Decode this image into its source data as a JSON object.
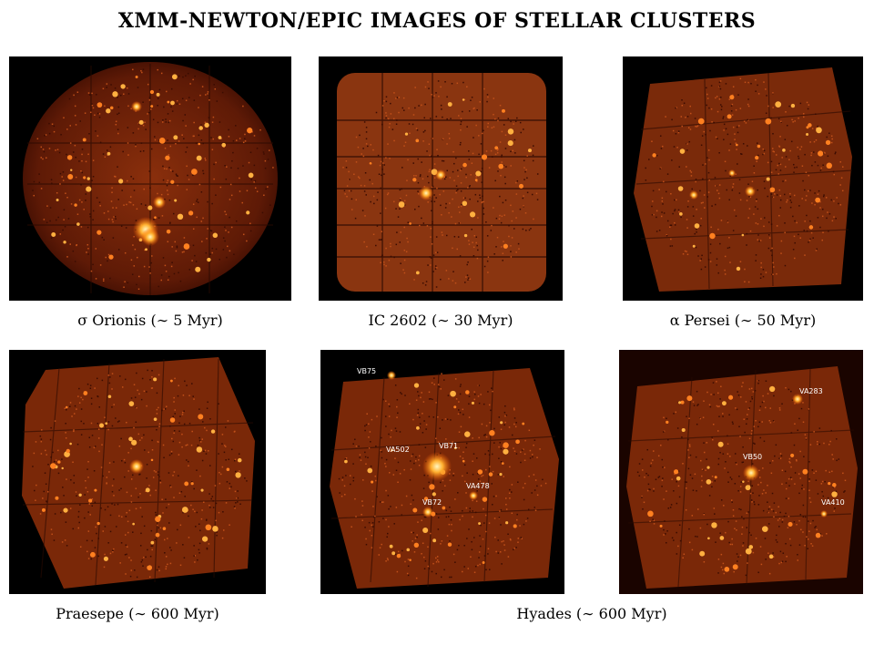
{
  "title": "XMM-NEWTON/EPIC IMAGES OF STELLAR CLUSTERS",
  "panels": [
    {
      "caption": "σ Orionis (∼ 5 Myr)"
    },
    {
      "caption": "IC 2602 (∼ 30 Myr)"
    },
    {
      "caption": "α Persei (∼ 50 Myr)"
    },
    {
      "caption": "Praesepe (∼ 600 Myr)"
    },
    {
      "caption": "Hyades (∼ 600 Myr)"
    }
  ],
  "source_labels": {
    "hyades_left": [
      "VB75",
      "VA502",
      "VB71",
      "VA478",
      "VB72"
    ],
    "hyades_right": [
      "VA283",
      "VB50",
      "VA410"
    ]
  },
  "colors": {
    "background": "#000000",
    "field_dark": "#5a1505",
    "field_mid": "#9a3510",
    "source_glow": "#ffd070"
  }
}
